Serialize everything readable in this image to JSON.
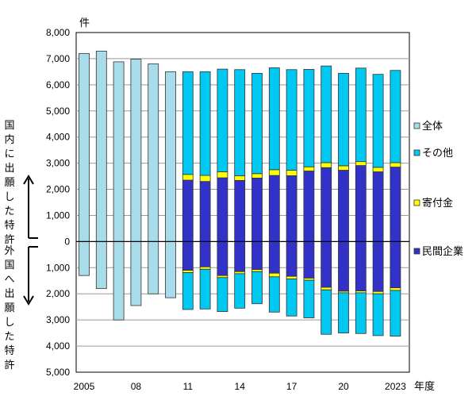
{
  "chart_data": {
    "type": "bar",
    "stacked": true,
    "unit_label": "件",
    "xlabel": "年度",
    "years": [
      2005,
      2006,
      2007,
      2008,
      2009,
      2010,
      2011,
      2012,
      2013,
      2014,
      2015,
      2016,
      2017,
      2018,
      2019,
      2020,
      2021,
      2022,
      2023
    ],
    "x_tick_labels": [
      "2005",
      "",
      "",
      "08",
      "",
      "",
      "11",
      "",
      "",
      "14",
      "",
      "",
      "17",
      "",
      "",
      "20",
      "",
      "",
      "2023"
    ],
    "ylim": [
      -5000,
      8000
    ],
    "y_ticks": [
      8000,
      7000,
      6000,
      5000,
      4000,
      3000,
      2000,
      1000,
      0,
      -1000,
      -2000,
      -3000,
      -4000,
      -5000
    ],
    "y_tick_labels": [
      "8,000",
      "7,000",
      "6,000",
      "5,000",
      "4,000",
      "3,000",
      "2,000",
      "1,000",
      "0",
      "1,000",
      "2,000",
      "3,000",
      "4,000",
      "5,000"
    ],
    "annotation_domestic": "国内に出願した特許",
    "annotation_foreign": "外国へ出願した特許",
    "legend": [
      "全体",
      "その他",
      "寄付金",
      "民間企業"
    ],
    "colors": {
      "全体": "#a8dcea",
      "その他": "#00c8f0",
      "寄付金": "#ffff00",
      "民間企業": "#3232c8"
    },
    "series_domestic": [
      {
        "name": "全体",
        "values": [
          7200,
          7290,
          6880,
          6980,
          6800,
          6500,
          null,
          null,
          null,
          null,
          null,
          null,
          null,
          null,
          null,
          null,
          null,
          null,
          null
        ]
      },
      {
        "name": "民間企業",
        "values": [
          null,
          null,
          null,
          null,
          null,
          null,
          2350,
          2300,
          2440,
          2340,
          2430,
          2530,
          2520,
          2700,
          2830,
          2730,
          2910,
          2670,
          2850
        ]
      },
      {
        "name": "寄付金",
        "values": [
          null,
          null,
          null,
          null,
          null,
          null,
          220,
          230,
          230,
          180,
          170,
          220,
          210,
          160,
          190,
          170,
          150,
          170,
          170
        ]
      },
      {
        "name": "その他",
        "values": [
          null,
          null,
          null,
          null,
          null,
          null,
          3930,
          3970,
          3930,
          4060,
          3840,
          3900,
          3850,
          3730,
          3700,
          3540,
          3580,
          3560,
          3530
        ]
      }
    ],
    "series_foreign": [
      {
        "name": "全体",
        "values": [
          1300,
          1800,
          3000,
          2450,
          2000,
          2150,
          null,
          null,
          null,
          null,
          null,
          null,
          null,
          null,
          null,
          null,
          null,
          null,
          null
        ]
      },
      {
        "name": "民間企業",
        "values": [
          null,
          null,
          null,
          null,
          null,
          null,
          1100,
          970,
          1300,
          1150,
          1070,
          1210,
          1330,
          1400,
          1750,
          1900,
          1890,
          1910,
          1770
        ]
      },
      {
        "name": "寄付金",
        "values": [
          null,
          null,
          null,
          null,
          null,
          null,
          90,
          90,
          80,
          80,
          80,
          140,
          100,
          80,
          100,
          60,
          70,
          90,
          100
        ]
      },
      {
        "name": "その他",
        "values": [
          null,
          null,
          null,
          null,
          null,
          null,
          1410,
          1520,
          1300,
          1320,
          1230,
          1350,
          1420,
          1440,
          1700,
          1540,
          1560,
          1600,
          1750
        ]
      }
    ]
  }
}
